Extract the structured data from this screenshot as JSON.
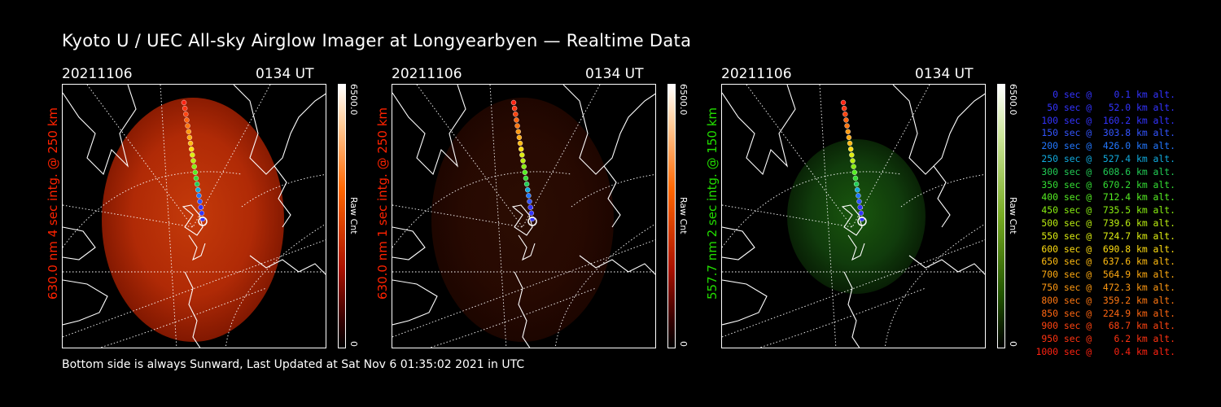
{
  "title": "Kyoto U / UEC All-sky Airglow Imager at Longyearbyen — Realtime Data",
  "footer": "Bottom side is always Sunward, Last Updated at Sat Nov  6 01:35:02 2021 in UTC",
  "panels": [
    {
      "date": "20211106",
      "time": "0134 UT",
      "label": "630.0 nm 4 sec intg. @ 250 km",
      "label_color": "#ff2200",
      "cbar_max": "6500.0",
      "cbar_min": "0",
      "cbar_unit": "Raw Cnt",
      "cmap": "red",
      "brightness": 1.0
    },
    {
      "date": "20211106",
      "time": "0134 UT",
      "label": "630.0 nm 1 sec intg. @ 250 km",
      "label_color": "#ff2200",
      "cbar_max": "6500.0",
      "cbar_min": "0",
      "cbar_unit": "Raw Cnt",
      "cmap": "red",
      "brightness": 0.22
    },
    {
      "date": "20211106",
      "time": "0134 UT",
      "label": "557.7 nm 2 sec intg. @ 150 km",
      "label_color": "#22dd00",
      "cbar_max": "6500.0",
      "cbar_min": "0",
      "cbar_unit": "Raw Cnt",
      "cmap": "green",
      "brightness": 0.55
    }
  ],
  "trajectory_legend": [
    {
      "text": "   0 sec @    0.1 km alt.",
      "color": "#3333ff"
    },
    {
      "text": "  50 sec @   52.0 km alt.",
      "color": "#3333ff"
    },
    {
      "text": " 100 sec @  160.2 km alt.",
      "color": "#3333ff"
    },
    {
      "text": " 150 sec @  303.8 km alt.",
      "color": "#3355ff"
    },
    {
      "text": " 200 sec @  426.0 km alt.",
      "color": "#2277ff"
    },
    {
      "text": " 250 sec @  527.4 km alt.",
      "color": "#11aadd"
    },
    {
      "text": " 300 sec @  608.6 km alt.",
      "color": "#22cc55"
    },
    {
      "text": " 350 sec @  670.2 km alt.",
      "color": "#33dd33"
    },
    {
      "text": " 400 sec @  712.4 km alt.",
      "color": "#55ee22"
    },
    {
      "text": " 450 sec @  735.5 km alt.",
      "color": "#88ee11"
    },
    {
      "text": " 500 sec @  739.6 km alt.",
      "color": "#bbee11"
    },
    {
      "text": " 550 sec @  724.7 km alt.",
      "color": "#ddee11"
    },
    {
      "text": " 600 sec @  690.8 km alt.",
      "color": "#ffdd11"
    },
    {
      "text": " 650 sec @  637.6 km alt.",
      "color": "#ffbb11"
    },
    {
      "text": " 700 sec @  564.9 km alt.",
      "color": "#ffaa11"
    },
    {
      "text": " 750 sec @  472.3 km alt.",
      "color": "#ff9911"
    },
    {
      "text": " 800 sec @  359.2 km alt.",
      "color": "#ff7711"
    },
    {
      "text": " 850 sec @  224.9 km alt.",
      "color": "#ff6611"
    },
    {
      "text": " 900 sec @   68.7 km alt.",
      "color": "#ff4411"
    },
    {
      "text": " 950 sec @    6.2 km alt.",
      "color": "#ff3311"
    },
    {
      "text": "1000 sec @    0.4 km alt.",
      "color": "#ff2211"
    }
  ]
}
